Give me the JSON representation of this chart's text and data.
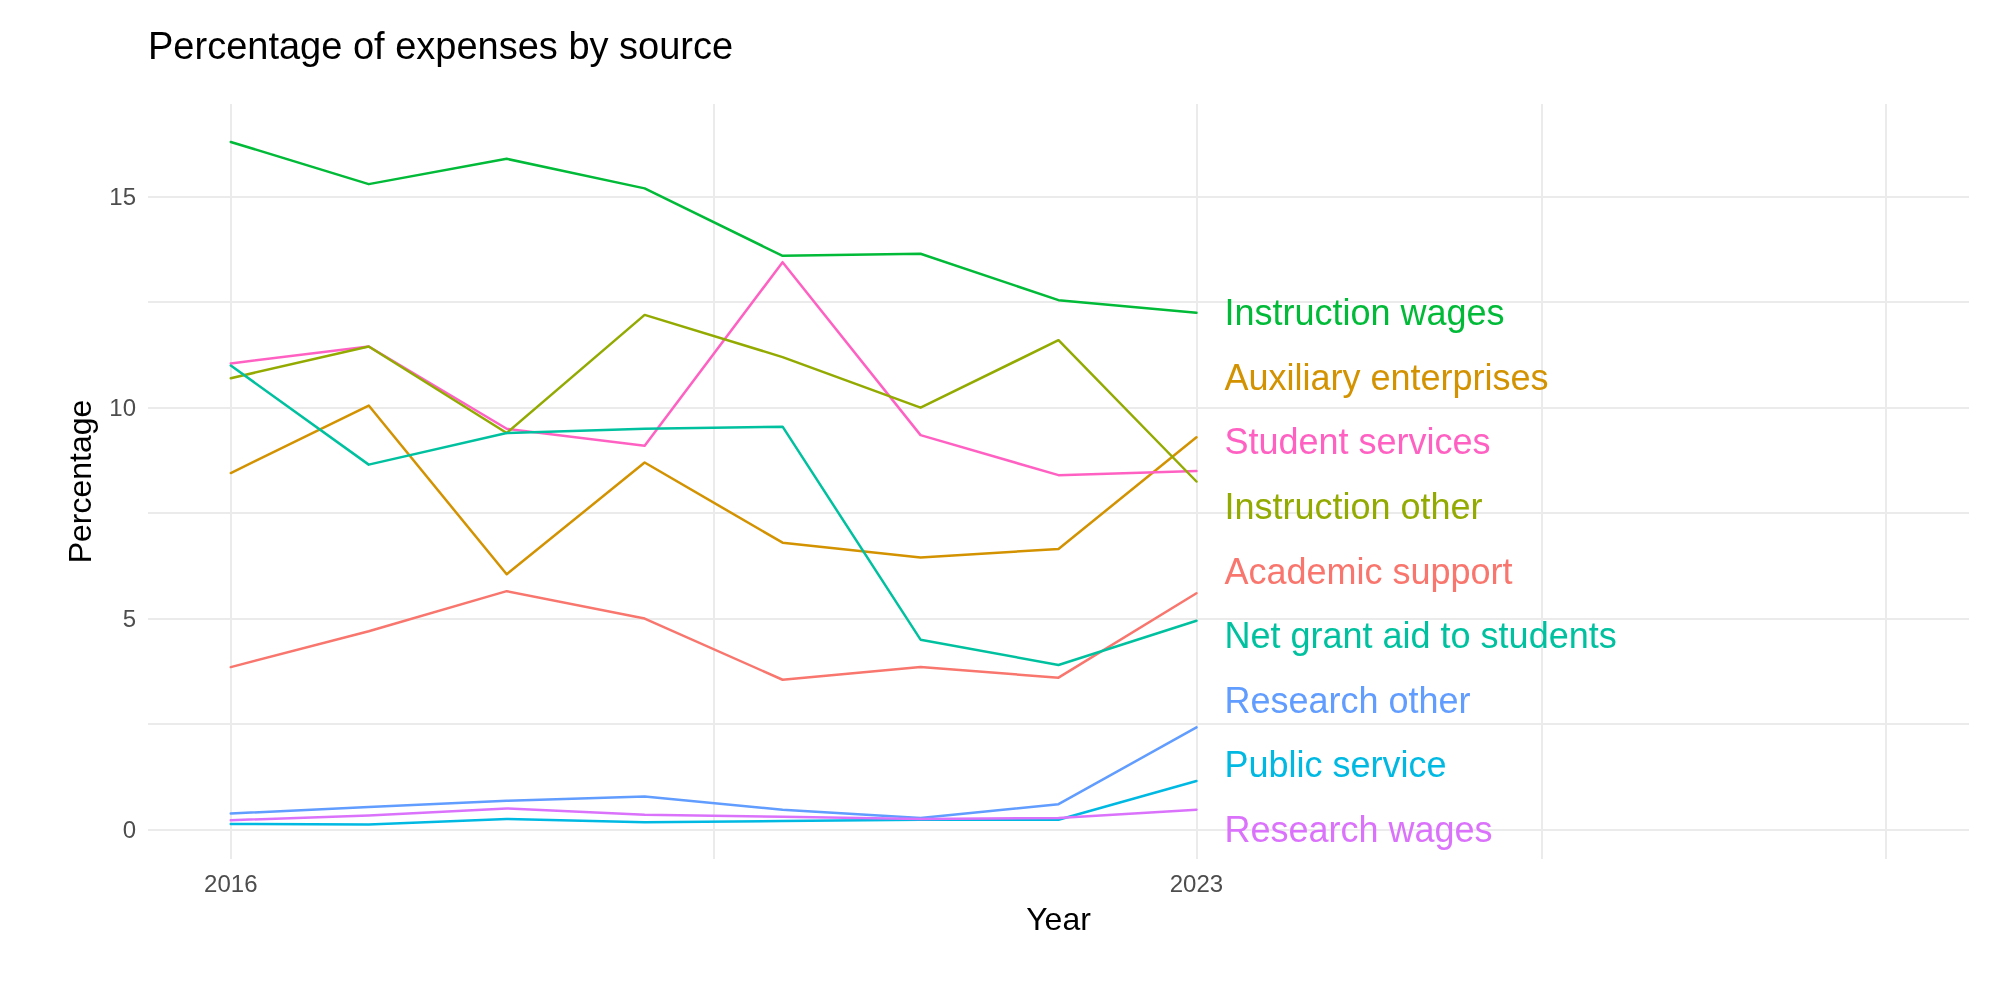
{
  "chart_data": {
    "type": "line",
    "title": "Percentage of expenses by source",
    "xlabel": "Year",
    "ylabel": "Percentage",
    "x": [
      2016,
      2017,
      2018,
      2019,
      2020,
      2021,
      2022,
      2023
    ],
    "xlim": [
      2015.4,
      2028.6
    ],
    "xticks": [
      2016,
      {
        "value": 2019.5,
        "label": null
      },
      2023,
      {
        "value": 2025.5,
        "label": null
      },
      {
        "value": 2028,
        "label": null
      }
    ],
    "ylim": [
      -0.7,
      17.2
    ],
    "yticks": [
      0,
      {
        "value": 2.5,
        "label": null
      },
      5,
      {
        "value": 7.5,
        "label": null
      },
      10,
      {
        "value": 12.5,
        "label": null
      },
      15
    ],
    "grid": true,
    "legend": false,
    "marker": "none",
    "line_style": "solid",
    "series": [
      {
        "name": "Instruction wages",
        "color": "#00ba38",
        "values": [
          16.3,
          15.3,
          15.9,
          15.2,
          13.6,
          13.65,
          12.55,
          12.25
        ]
      },
      {
        "name": "Auxiliary enterprises",
        "color": "#d39200",
        "values": [
          8.45,
          10.05,
          6.05,
          8.7,
          6.8,
          6.45,
          6.65,
          9.3
        ]
      },
      {
        "name": "Student services",
        "color": "#ff61c3",
        "values": [
          11.05,
          11.45,
          9.5,
          9.1,
          13.45,
          9.35,
          8.4,
          8.5
        ]
      },
      {
        "name": "Instruction other",
        "color": "#93aa00",
        "values": [
          10.7,
          11.45,
          9.4,
          12.2,
          11.2,
          10.0,
          11.6,
          8.25
        ]
      },
      {
        "name": "Academic support",
        "color": "#f8766d",
        "values": [
          3.85,
          4.7,
          5.65,
          5.0,
          3.55,
          3.85,
          3.6,
          5.6
        ]
      },
      {
        "name": "Net grant aid to students",
        "color": "#00c19f",
        "values": [
          11.0,
          8.65,
          9.4,
          9.5,
          9.55,
          4.5,
          3.9,
          4.95
        ]
      },
      {
        "name": "Research other",
        "color": "#619cff",
        "values": [
          0.38,
          0.53,
          0.68,
          0.78,
          0.47,
          0.27,
          0.6,
          2.42
        ]
      },
      {
        "name": "Public service",
        "color": "#00b9e3",
        "values": [
          0.13,
          0.12,
          0.25,
          0.17,
          0.2,
          0.23,
          0.23,
          1.15
        ]
      },
      {
        "name": "Research wages",
        "color": "#db72fb",
        "values": [
          0.22,
          0.33,
          0.5,
          0.35,
          0.3,
          0.25,
          0.27,
          0.47
        ]
      }
    ]
  }
}
